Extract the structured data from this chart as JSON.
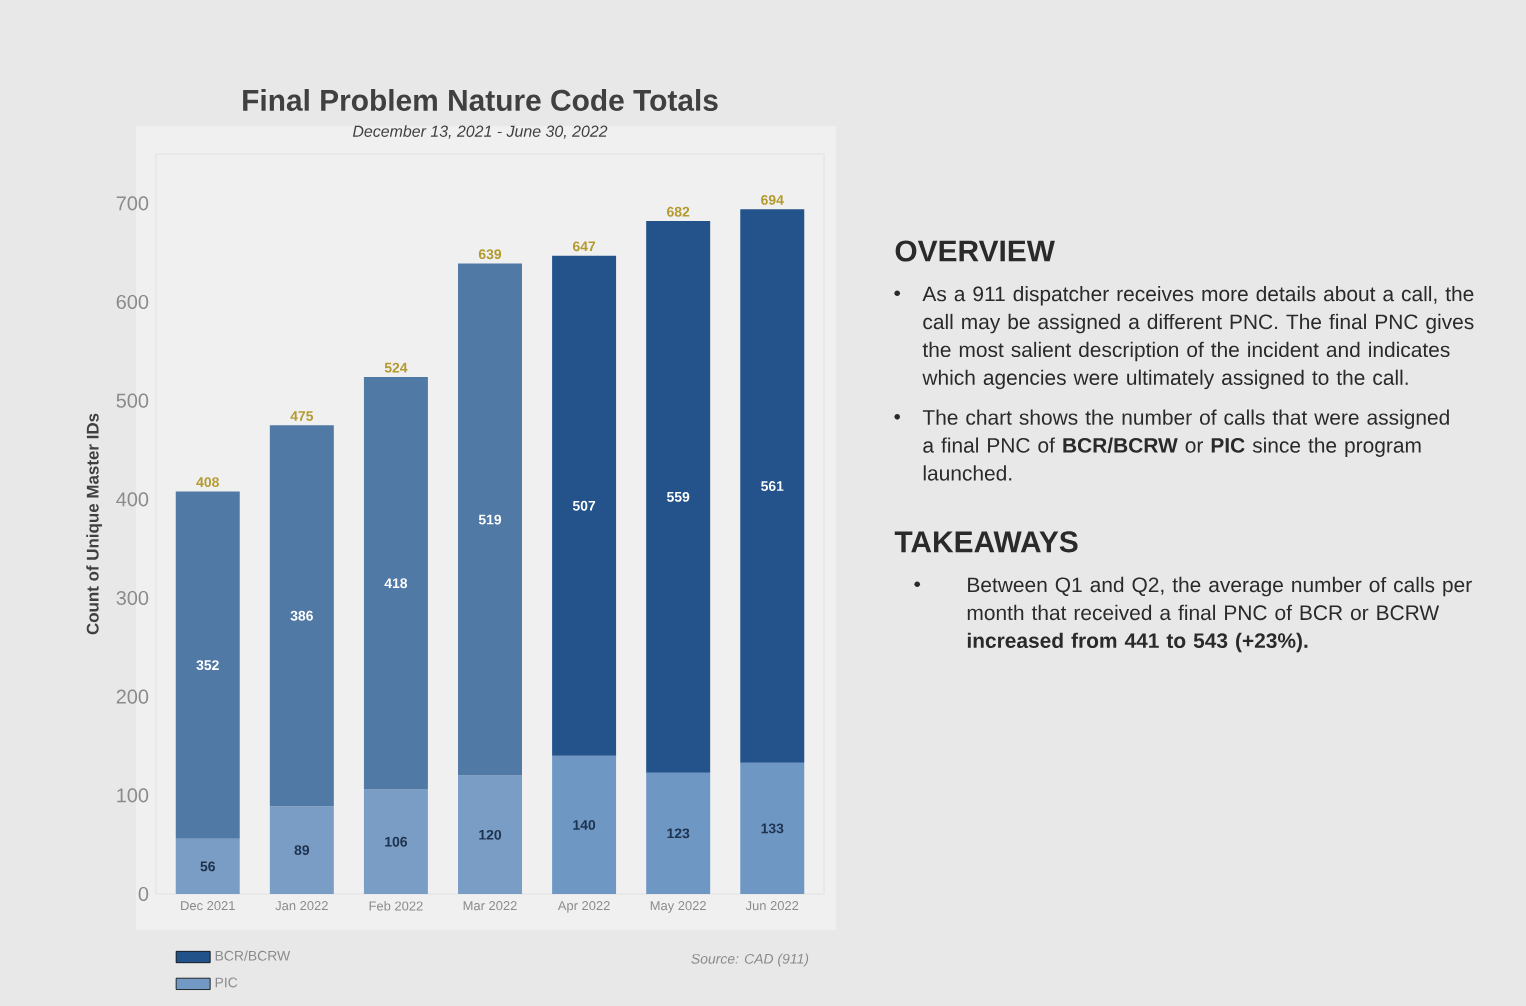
{
  "chart_data": {
    "type": "bar",
    "title": "Final Problem Nature Code Totals",
    "subtitle": "December 13, 2021 - June 30, 2022",
    "ylabel": "Count of Unique Master IDs",
    "categories": [
      "Dec 2021",
      "Jan 2022",
      "Feb 2022",
      "Mar 2022",
      "Apr 2022",
      "May 2022",
      "Jun 2022"
    ],
    "stacked": true,
    "series": [
      {
        "name": "PIC",
        "color": "#7199c4",
        "colors": [
          "#7a9dc5",
          "#7a9dc5",
          "#7a9dc5",
          "#7a9dc5",
          "#6f97c4",
          "#6f97c4",
          "#6f97c4"
        ],
        "values": [
          56,
          89,
          106,
          120,
          140,
          123,
          133
        ]
      },
      {
        "name": "BCR/BCRW",
        "color": "#22528a",
        "colors": [
          "#5179a5",
          "#5179a5",
          "#5179a5",
          "#5179a5",
          "#23538a",
          "#23538a",
          "#23538a"
        ],
        "values": [
          352,
          386,
          418,
          519,
          507,
          559,
          561
        ]
      }
    ],
    "totals": [
      "408",
      "475",
      "524",
      "639",
      "647",
      "682",
      "694"
    ],
    "data_labels": true,
    "ylim": [
      0,
      750
    ],
    "yticks": [
      0,
      100,
      200,
      300,
      400,
      500,
      600,
      700
    ],
    "legend": "bottom left",
    "annotations": [
      "OVERVIEW",
      "As a 911 dispatcher receives more details about a call, the call may be assigned a different PNC. The final PNC gives the most salient description of the incident and indicates which agencies were ultimately assigned to the call.",
      "The chart shows the number of calls that were assigned a final PNC of **BCR/BCRW** or **PIC** since the program launched.",
      "TAKEAWAYS",
      "Between Q1 and Q2, the average number of calls per month that received a final PNC of BCR or BCRW **increased from 441 to 543 (+23%).**",
      "Source: CAD (911)"
    ]
  }
}
